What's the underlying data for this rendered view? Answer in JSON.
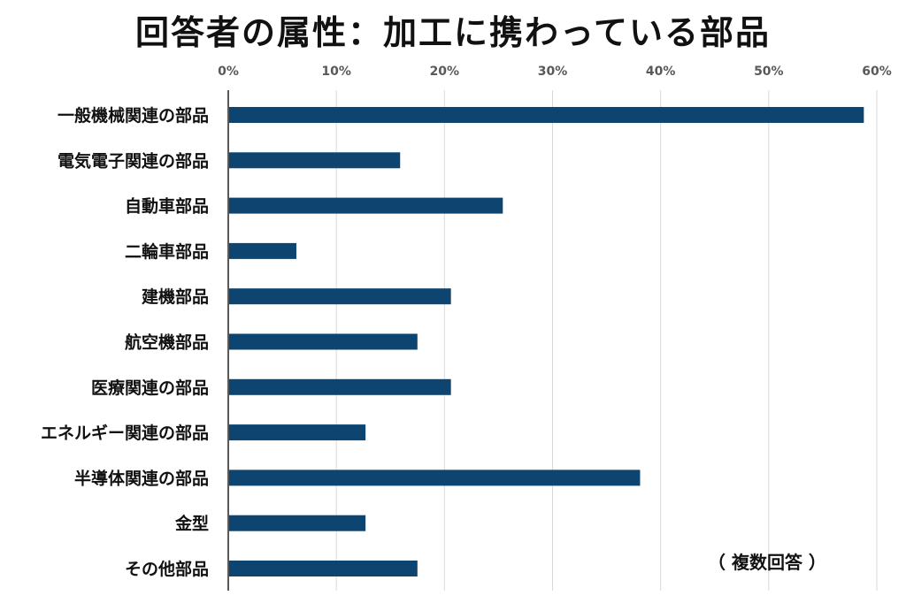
{
  "chart_data": {
    "type": "bar",
    "orientation": "horizontal",
    "title": "回答者の属性：加工に携わっている部品",
    "note": "（ 複数回答 ）",
    "xlim": [
      0,
      60
    ],
    "ticks": [
      "0%",
      "10%",
      "20%",
      "30%",
      "40%",
      "50%",
      "60%"
    ],
    "tick_values": [
      0,
      10,
      20,
      30,
      40,
      50,
      60
    ],
    "grid": true,
    "bar_color": "#0d4470",
    "categories": [
      "一般機械関連の部品",
      "電気電子関連の部品",
      "自動車部品",
      "二輪車部品",
      "建機部品",
      "航空機部品",
      "医療関連の部品",
      "エネルギー関連の部品",
      "半導体関連の部品",
      "金型",
      "その他部品"
    ],
    "values": [
      58.8,
      15.9,
      25.4,
      6.3,
      20.6,
      17.5,
      20.6,
      12.7,
      38.1,
      12.7,
      17.5
    ]
  }
}
